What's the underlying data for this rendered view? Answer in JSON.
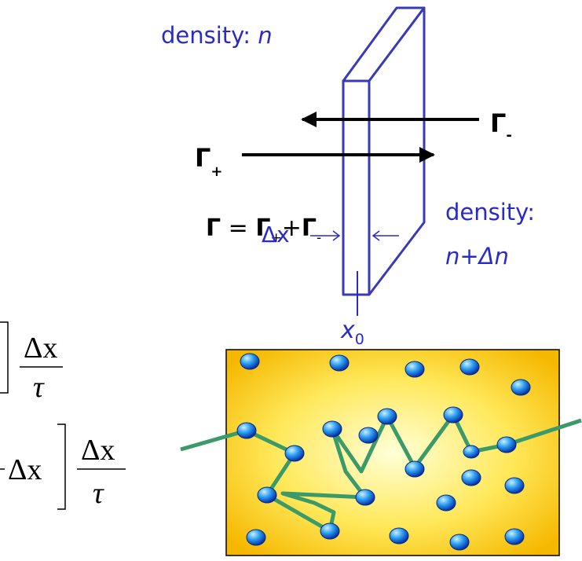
{
  "slab": {
    "top_density": {
      "label": "density:",
      "var": "n"
    },
    "bottom_density": {
      "label": "density:",
      "value": "n+Δn"
    },
    "width_label": "Δx",
    "position": {
      "var": "x",
      "sub": "0"
    }
  },
  "fluxes": {
    "minus": {
      "symbol": "Γ",
      "sub": "-"
    },
    "plus": {
      "symbol": "Γ",
      "sub": "+"
    }
  },
  "equation": {
    "lhs": "Γ",
    "eq": "=",
    "t1": "Γ",
    "t1_sub": "+",
    "plus": "+",
    "t2": "Γ",
    "t2_sub": "-"
  },
  "cropped_formulas": {
    "f1": {
      "num": "Δx",
      "den": "τ"
    },
    "f2": {
      "prefix": "Δx",
      "num": "Δx",
      "den": "τ"
    }
  }
}
